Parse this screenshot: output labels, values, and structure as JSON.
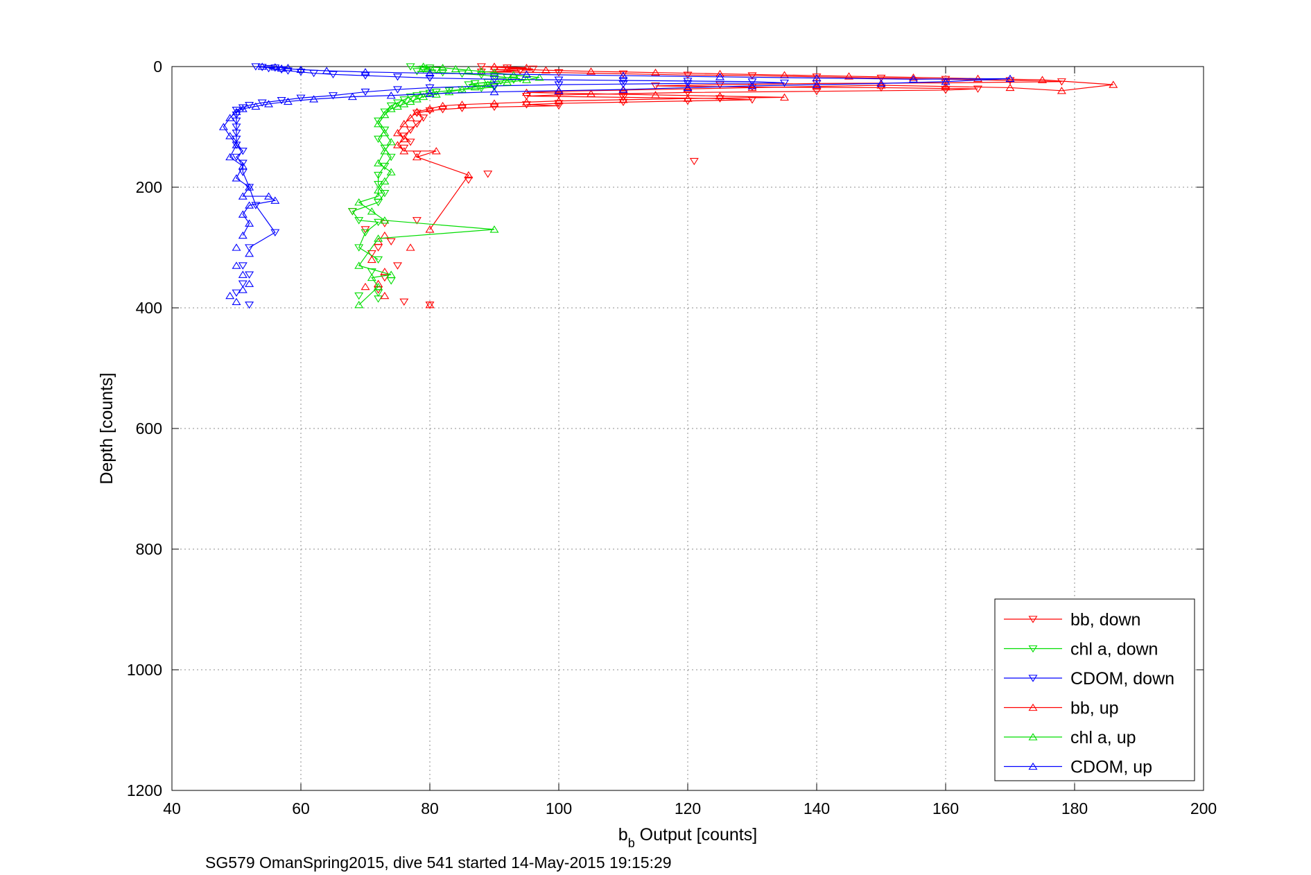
{
  "chart_data": {
    "type": "scatter",
    "xlabel_main": "b",
    "xlabel_sub": "b",
    "xlabel_rest": " Output [counts]",
    "ylabel": "Depth [counts]",
    "caption": "SG579 OmanSpring2015, dive 541 started 14-May-2015 19:15:29",
    "xlim": [
      40,
      200
    ],
    "ylim": [
      0,
      1200
    ],
    "y_reversed": true,
    "xticks": [
      "40",
      "60",
      "80",
      "100",
      "120",
      "140",
      "160",
      "180",
      "200"
    ],
    "yticks": [
      "0",
      "200",
      "400",
      "600",
      "800",
      "1000",
      "1200"
    ],
    "grid": true,
    "legend_position": "bottom-right",
    "series": [
      {
        "name": "bb, down",
        "color": "#ff0000",
        "marker": "triangle-down",
        "line": true,
        "points": [
          [
            88,
            0
          ],
          [
            92,
            2
          ],
          [
            96,
            4
          ],
          [
            90,
            5
          ],
          [
            94,
            7
          ],
          [
            88,
            9
          ],
          [
            100,
            10
          ],
          [
            110,
            12
          ],
          [
            120,
            14
          ],
          [
            130,
            15
          ],
          [
            140,
            17
          ],
          [
            150,
            19
          ],
          [
            160,
            21
          ],
          [
            170,
            23
          ],
          [
            178,
            25
          ],
          [
            160,
            27
          ],
          [
            140,
            28
          ],
          [
            125,
            30
          ],
          [
            115,
            32
          ],
          [
            130,
            34
          ],
          [
            150,
            35
          ],
          [
            165,
            37
          ],
          [
            160,
            39
          ],
          [
            140,
            41
          ],
          [
            120,
            43
          ],
          [
            110,
            45
          ],
          [
            100,
            47
          ],
          [
            95,
            49
          ],
          [
            110,
            51
          ],
          [
            125,
            53
          ],
          [
            130,
            55
          ],
          [
            120,
            57
          ],
          [
            110,
            59
          ],
          [
            100,
            61
          ],
          [
            95,
            63
          ],
          [
            100,
            65
          ],
          [
            90,
            67
          ],
          [
            85,
            69
          ],
          [
            82,
            71
          ],
          [
            80,
            73
          ],
          [
            78,
            77
          ],
          [
            79,
            85
          ],
          [
            78,
            95
          ],
          [
            77,
            105
          ],
          [
            76,
            115
          ],
          [
            77,
            125
          ],
          [
            76,
            135
          ],
          [
            78,
            145
          ],
          [
            121,
            157
          ],
          [
            89,
            178
          ],
          [
            86,
            188
          ],
          [
            68,
            240
          ],
          [
            73,
            260
          ],
          [
            78,
            255
          ],
          [
            70,
            270
          ],
          [
            74,
            290
          ],
          [
            72,
            300
          ],
          [
            71,
            310
          ],
          [
            75,
            330
          ],
          [
            73,
            350
          ],
          [
            72,
            370
          ],
          [
            76,
            390
          ],
          [
            80,
            395
          ]
        ]
      },
      {
        "name": "chl a, down",
        "color": "#00dd00",
        "marker": "triangle-down",
        "line": true,
        "points": [
          [
            77,
            0
          ],
          [
            80,
            2
          ],
          [
            79,
            4
          ],
          [
            81,
            6
          ],
          [
            78,
            8
          ],
          [
            82,
            10
          ],
          [
            85,
            12
          ],
          [
            88,
            14
          ],
          [
            90,
            16
          ],
          [
            92,
            18
          ],
          [
            94,
            20
          ],
          [
            93,
            22
          ],
          [
            91,
            24
          ],
          [
            89,
            26
          ],
          [
            87,
            28
          ],
          [
            86,
            30
          ],
          [
            88,
            32
          ],
          [
            90,
            34
          ],
          [
            88,
            36
          ],
          [
            85,
            38
          ],
          [
            83,
            40
          ],
          [
            81,
            42
          ],
          [
            80,
            44
          ],
          [
            79,
            46
          ],
          [
            78,
            48
          ],
          [
            77,
            50
          ],
          [
            76,
            55
          ],
          [
            75,
            60
          ],
          [
            74,
            65
          ],
          [
            73,
            75
          ],
          [
            72,
            90
          ],
          [
            73,
            105
          ],
          [
            72,
            120
          ],
          [
            73,
            135
          ],
          [
            74,
            150
          ],
          [
            73,
            165
          ],
          [
            72,
            180
          ],
          [
            72,
            195
          ],
          [
            73,
            210
          ],
          [
            72,
            225
          ],
          [
            68,
            240
          ],
          [
            69,
            255
          ],
          [
            72,
            258
          ],
          [
            70,
            275
          ],
          [
            69,
            300
          ],
          [
            72,
            320
          ],
          [
            71,
            340
          ],
          [
            74,
            355
          ],
          [
            72,
            375
          ],
          [
            69,
            380
          ],
          [
            72,
            385
          ]
        ]
      },
      {
        "name": "CDOM, down",
        "color": "#0000ff",
        "marker": "triangle-down",
        "line": true,
        "points": [
          [
            53,
            0
          ],
          [
            54,
            1
          ],
          [
            56,
            2
          ],
          [
            55,
            3
          ],
          [
            57,
            5
          ],
          [
            58,
            7
          ],
          [
            60,
            9
          ],
          [
            62,
            11
          ],
          [
            65,
            13
          ],
          [
            70,
            15
          ],
          [
            75,
            17
          ],
          [
            80,
            19
          ],
          [
            90,
            21
          ],
          [
            100,
            22
          ],
          [
            110,
            23
          ],
          [
            120,
            24
          ],
          [
            130,
            25
          ],
          [
            135,
            27
          ],
          [
            120,
            28
          ],
          [
            110,
            29
          ],
          [
            100,
            30
          ],
          [
            90,
            32
          ],
          [
            80,
            35
          ],
          [
            75,
            38
          ],
          [
            70,
            42
          ],
          [
            65,
            48
          ],
          [
            60,
            52
          ],
          [
            57,
            56
          ],
          [
            54,
            60
          ],
          [
            52,
            64
          ],
          [
            51,
            68
          ],
          [
            50,
            72
          ],
          [
            50,
            80
          ],
          [
            50,
            90
          ],
          [
            50,
            100
          ],
          [
            50,
            110
          ],
          [
            50,
            120
          ],
          [
            50,
            130
          ],
          [
            51,
            140
          ],
          [
            50,
            150
          ],
          [
            51,
            160
          ],
          [
            51,
            175
          ],
          [
            52,
            200
          ],
          [
            53,
            230
          ],
          [
            56,
            275
          ],
          [
            52,
            300
          ],
          [
            51,
            330
          ],
          [
            52,
            345
          ],
          [
            51,
            360
          ],
          [
            50,
            375
          ],
          [
            52,
            395
          ]
        ]
      },
      {
        "name": "bb, up",
        "color": "#ff0000",
        "marker": "triangle-up",
        "line": true,
        "points": [
          [
            90,
            0
          ],
          [
            95,
            2
          ],
          [
            92,
            4
          ],
          [
            98,
            6
          ],
          [
            105,
            8
          ],
          [
            115,
            10
          ],
          [
            125,
            12
          ],
          [
            135,
            14
          ],
          [
            145,
            16
          ],
          [
            155,
            18
          ],
          [
            165,
            20
          ],
          [
            175,
            22
          ],
          [
            186,
            30
          ],
          [
            178,
            40
          ],
          [
            170,
            35
          ],
          [
            160,
            33
          ],
          [
            150,
            31
          ],
          [
            140,
            33
          ],
          [
            130,
            35
          ],
          [
            120,
            37
          ],
          [
            110,
            39
          ],
          [
            100,
            41
          ],
          [
            95,
            43
          ],
          [
            105,
            45
          ],
          [
            115,
            47
          ],
          [
            125,
            49
          ],
          [
            135,
            51
          ],
          [
            120,
            53
          ],
          [
            110,
            55
          ],
          [
            100,
            57
          ],
          [
            95,
            59
          ],
          [
            90,
            61
          ],
          [
            85,
            63
          ],
          [
            82,
            65
          ],
          [
            80,
            70
          ],
          [
            78,
            75
          ],
          [
            77,
            85
          ],
          [
            76,
            95
          ],
          [
            75,
            110
          ],
          [
            76,
            120
          ],
          [
            75,
            130
          ],
          [
            76,
            140
          ],
          [
            81,
            140
          ],
          [
            78,
            150
          ],
          [
            86,
            180
          ],
          [
            80,
            270
          ],
          [
            73,
            280
          ],
          [
            72,
            290
          ],
          [
            77,
            300
          ],
          [
            71,
            320
          ],
          [
            73,
            340
          ],
          [
            72,
            360
          ],
          [
            70,
            365
          ],
          [
            73,
            380
          ],
          [
            80,
            395
          ]
        ]
      },
      {
        "name": "chl a, up",
        "color": "#00dd00",
        "marker": "triangle-up",
        "line": true,
        "points": [
          [
            79,
            0
          ],
          [
            82,
            2
          ],
          [
            84,
            4
          ],
          [
            86,
            6
          ],
          [
            88,
            8
          ],
          [
            90,
            10
          ],
          [
            93,
            14
          ],
          [
            97,
            18
          ],
          [
            95,
            22
          ],
          [
            92,
            26
          ],
          [
            89,
            30
          ],
          [
            87,
            34
          ],
          [
            85,
            38
          ],
          [
            83,
            42
          ],
          [
            81,
            46
          ],
          [
            79,
            50
          ],
          [
            78,
            54
          ],
          [
            77,
            58
          ],
          [
            76,
            62
          ],
          [
            75,
            66
          ],
          [
            74,
            70
          ],
          [
            73,
            80
          ],
          [
            72,
            95
          ],
          [
            73,
            110
          ],
          [
            74,
            125
          ],
          [
            73,
            140
          ],
          [
            72,
            160
          ],
          [
            74,
            175
          ],
          [
            73,
            190
          ],
          [
            72,
            205
          ],
          [
            72,
            215
          ],
          [
            69,
            225
          ],
          [
            71,
            240
          ],
          [
            73,
            255
          ],
          [
            90,
            270
          ],
          [
            72,
            285
          ],
          [
            69,
            330
          ],
          [
            74,
            345
          ],
          [
            71,
            350
          ],
          [
            72,
            365
          ],
          [
            69,
            395
          ]
        ]
      },
      {
        "name": "CDOM, up",
        "color": "#0000ff",
        "marker": "triangle-up",
        "line": true,
        "points": [
          [
            54,
            0
          ],
          [
            56,
            1
          ],
          [
            58,
            2
          ],
          [
            57,
            3
          ],
          [
            60,
            5
          ],
          [
            64,
            7
          ],
          [
            70,
            9
          ],
          [
            80,
            11
          ],
          [
            95,
            13
          ],
          [
            110,
            15
          ],
          [
            125,
            17
          ],
          [
            140,
            19
          ],
          [
            155,
            21
          ],
          [
            170,
            20
          ],
          [
            160,
            25
          ],
          [
            150,
            28
          ],
          [
            140,
            30
          ],
          [
            130,
            32
          ],
          [
            120,
            35
          ],
          [
            110,
            38
          ],
          [
            100,
            40
          ],
          [
            90,
            42
          ],
          [
            80,
            45
          ],
          [
            74,
            48
          ],
          [
            68,
            50
          ],
          [
            62,
            54
          ],
          [
            58,
            58
          ],
          [
            55,
            62
          ],
          [
            53,
            66
          ],
          [
            51,
            70
          ],
          [
            50,
            75
          ],
          [
            49,
            85
          ],
          [
            48,
            100
          ],
          [
            49,
            115
          ],
          [
            50,
            130
          ],
          [
            49,
            150
          ],
          [
            51,
            165
          ],
          [
            50,
            185
          ],
          [
            52,
            200
          ],
          [
            51,
            215
          ],
          [
            55,
            215
          ],
          [
            56,
            222
          ],
          [
            52,
            230
          ],
          [
            51,
            245
          ],
          [
            52,
            260
          ],
          [
            51,
            280
          ],
          [
            50,
            300
          ],
          [
            52,
            310
          ],
          [
            50,
            330
          ],
          [
            51,
            345
          ],
          [
            52,
            360
          ],
          [
            51,
            370
          ],
          [
            49,
            380
          ],
          [
            50,
            390
          ]
        ]
      }
    ]
  }
}
